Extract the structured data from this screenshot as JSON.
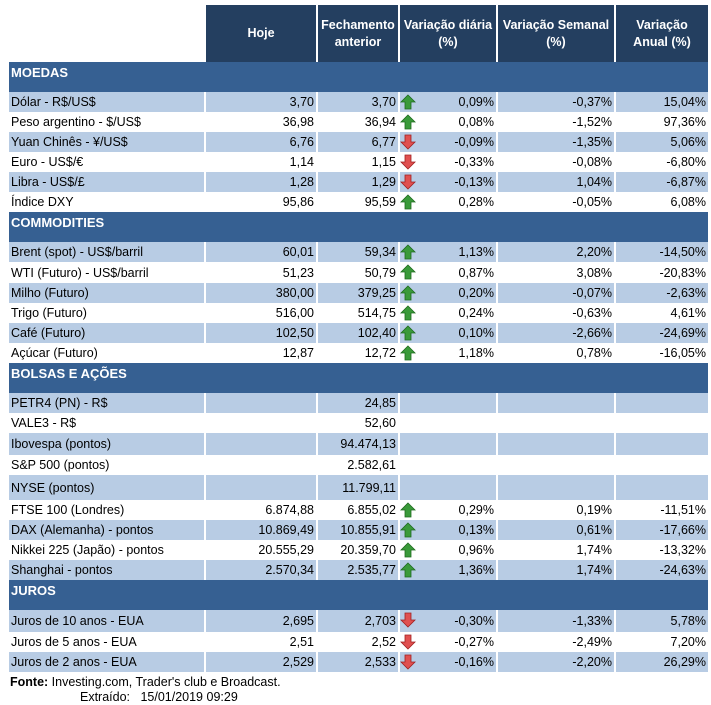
{
  "columns": [
    "",
    "Hoje",
    "Fechamento anterior",
    "Variação diária (%)",
    "Variação Semanal (%)",
    "Variação Anual (%)"
  ],
  "colors": {
    "header": "#243f60",
    "section": "#366092",
    "stripe": "#b8cce4",
    "up": "#3a9a3a",
    "down": "#e05050"
  },
  "sections": [
    {
      "title": "MOEDAS",
      "rows": [
        [
          "Dólar - R$/US$",
          "3,70",
          "3,70",
          "up",
          "0,09%",
          "-0,37%",
          "15,04%"
        ],
        [
          "Peso argentino - $/US$",
          "36,98",
          "36,94",
          "up",
          "0,08%",
          "-1,52%",
          "97,36%"
        ],
        [
          "Yuan Chinês - ¥/US$",
          "6,76",
          "6,77",
          "down",
          "-0,09%",
          "-1,35%",
          "5,06%"
        ],
        [
          "Euro - US$/€",
          "1,14",
          "1,15",
          "down",
          "-0,33%",
          "-0,08%",
          "-6,80%"
        ],
        [
          "Libra - US$/£",
          "1,28",
          "1,29",
          "down",
          "-0,13%",
          "1,04%",
          "-6,87%"
        ],
        [
          "Índice DXY",
          "95,86",
          "95,59",
          "up",
          "0,28%",
          "-0,05%",
          "6,08%"
        ]
      ]
    },
    {
      "title": "COMMODITIES",
      "rows": [
        [
          "Brent (spot) - US$/barril",
          "60,01",
          "59,34",
          "up",
          "1,13%",
          "2,20%",
          "-14,50%"
        ],
        [
          "WTI (Futuro) - US$/barril",
          "51,23",
          "50,79",
          "up",
          "0,87%",
          "3,08%",
          "-20,83%"
        ],
        [
          "Milho (Futuro)",
          "380,00",
          "379,25",
          "up",
          "0,20%",
          "-0,07%",
          "-2,63%"
        ],
        [
          "Trigo (Futuro)",
          "516,00",
          "514,75",
          "up",
          "0,24%",
          "-0,63%",
          "4,61%"
        ],
        [
          "Café (Futuro)",
          "102,50",
          "102,40",
          "up",
          "0,10%",
          "-2,66%",
          "-24,69%"
        ],
        [
          "Açúcar (Futuro)",
          "12,87",
          "12,72",
          "up",
          "1,18%",
          "0,78%",
          "-16,05%"
        ]
      ]
    },
    {
      "title": "BOLSAS E AÇÕES",
      "rows": [
        [
          "PETR4 (PN) - R$",
          "",
          "24,85",
          "",
          "",
          "",
          ""
        ],
        [
          "VALE3 - R$",
          "",
          "52,60",
          "",
          "",
          "",
          ""
        ],
        [
          "Ibovespa (pontos)",
          "",
          "94.474,13",
          "",
          "",
          "",
          ""
        ],
        [
          "S&P 500 (pontos)",
          "",
          "2.582,61",
          "",
          "",
          "",
          ""
        ],
        [
          "NYSE (pontos)",
          "",
          "11.799,11",
          "",
          "",
          "",
          ""
        ],
        [
          "FTSE 100 (Londres)",
          "6.874,88",
          "6.855,02",
          "up",
          "0,29%",
          "0,19%",
          "-11,51%"
        ],
        [
          "DAX (Alemanha) - pontos",
          "10.869,49",
          "10.855,91",
          "up",
          "0,13%",
          "0,61%",
          "-17,66%"
        ],
        [
          "Nikkei 225 (Japão) - pontos",
          "20.555,29",
          "20.359,70",
          "up",
          "0,96%",
          "1,74%",
          "-13,32%"
        ],
        [
          "Shanghai - pontos",
          "2.570,34",
          "2.535,77",
          "up",
          "1,36%",
          "1,74%",
          "-24,63%"
        ]
      ]
    },
    {
      "title": "JUROS",
      "rows": [
        [
          "Juros de 10 anos - EUA",
          "2,695",
          "2,703",
          "down",
          "-0,30%",
          "-1,33%",
          "5,78%"
        ],
        [
          "Juros de 5 anos - EUA",
          "2,51",
          "2,52",
          "down",
          "-0,27%",
          "-2,49%",
          "7,20%"
        ],
        [
          "Juros de 2 anos - EUA",
          "2,529",
          "2,533",
          "down",
          "-0,16%",
          "-2,20%",
          "26,29%"
        ]
      ]
    }
  ],
  "footer": {
    "source_label": "Fonte:",
    "source": "Investing.com, Trader's club e Broadcast.",
    "extracted_label": "Extraído:",
    "extracted": "15/01/2019 09:29"
  }
}
